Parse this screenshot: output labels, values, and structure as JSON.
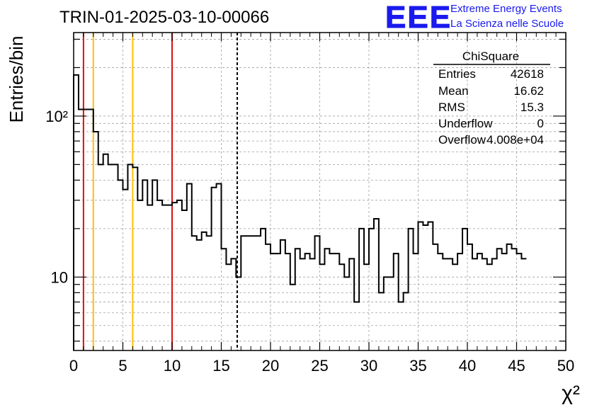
{
  "header": {
    "title": "TRIN-01-2025-03-10-00066",
    "logo_text": "EEE",
    "logo_line1": "Extreme Energy Events",
    "logo_line2": "La Scienza nelle Scuole"
  },
  "stats": {
    "title": "ChiSquare",
    "rows": [
      {
        "label": "Entries",
        "value": "42618"
      },
      {
        "label": "Mean",
        "value": "16.62"
      },
      {
        "label": "RMS",
        "value": "15.3"
      },
      {
        "label": "Underflow",
        "value": "0"
      },
      {
        "label": "Overflow",
        "value": "4.008e+04"
      }
    ]
  },
  "colors": {
    "histogram": "#000000",
    "red_lines": "#dd1111",
    "yellow_lines": "#ffc000",
    "logo": "#1a1aee",
    "grid": "#a0a0a0"
  },
  "chart_data": {
    "type": "histogram",
    "title": "TRIN-01-2025-03-10-00066",
    "xlabel": "χ²",
    "ylabel": "Entries/bin",
    "xlim": [
      0,
      50
    ],
    "ylim": [
      3.5,
      330
    ],
    "yscale": "log",
    "grid": true,
    "bin_width": 0.5,
    "x_ticks": [
      0,
      5,
      10,
      15,
      20,
      25,
      30,
      35,
      40,
      45,
      50
    ],
    "y_tick_labels": [
      {
        "value": 10,
        "label": "10"
      },
      {
        "value": 100,
        "label": "10²"
      }
    ],
    "values": [
      180,
      110,
      110,
      110,
      80,
      50,
      58,
      50,
      50,
      40,
      35,
      50,
      48,
      30,
      40,
      28,
      40,
      30,
      28,
      28,
      29,
      30,
      26,
      38,
      18,
      17,
      19,
      18,
      36,
      38,
      15,
      12,
      13,
      10,
      18,
      18,
      18,
      18,
      20,
      16,
      14,
      14,
      17,
      14,
      9,
      15,
      13,
      14,
      13,
      18,
      12,
      15,
      14,
      14,
      12,
      10,
      13,
      7,
      20,
      12,
      20,
      23,
      8,
      10,
      10,
      14,
      7,
      8,
      20,
      14,
      22,
      21,
      22,
      16,
      14,
      13,
      13,
      12,
      14,
      20,
      16,
      13,
      14,
      13,
      12,
      13,
      15,
      14,
      16,
      15,
      14,
      13
    ],
    "vertical_lines": [
      {
        "x": 1.0,
        "color": "red",
        "style": "solid"
      },
      {
        "x": 2.0,
        "color": "yellow",
        "style": "solid"
      },
      {
        "x": 6.0,
        "color": "yellow",
        "style": "solid"
      },
      {
        "x": 10.0,
        "color": "red",
        "style": "solid"
      },
      {
        "x": 16.62,
        "color": "black",
        "style": "dashed"
      }
    ]
  }
}
